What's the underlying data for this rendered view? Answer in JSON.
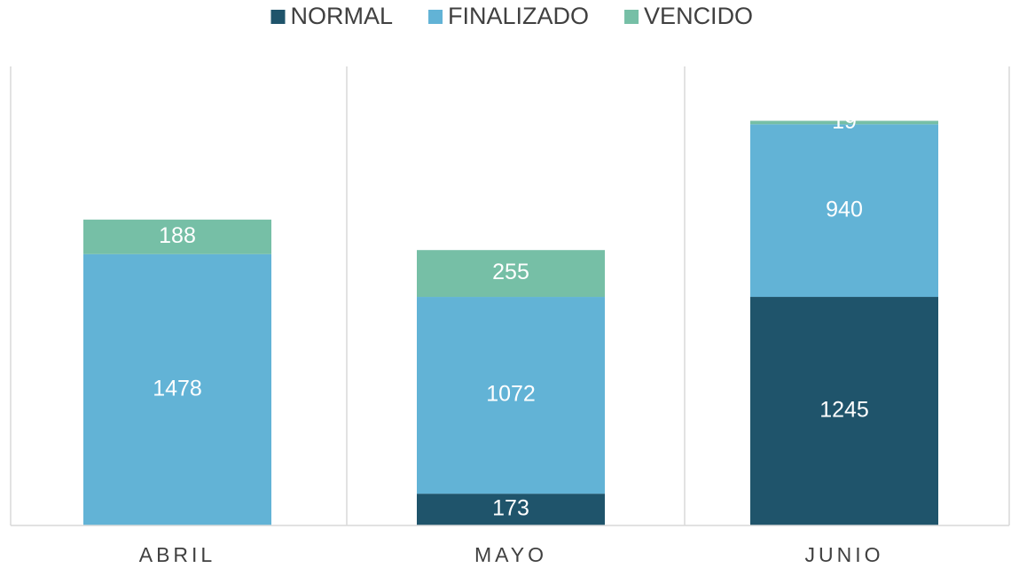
{
  "chart_data": {
    "type": "stacked_bar",
    "categories": [
      "ABRIL",
      "MAYO",
      "JUNIO"
    ],
    "series": [
      {
        "name": "NORMAL",
        "color": "#1f546b",
        "values": [
          0,
          173,
          1245
        ]
      },
      {
        "name": "FINALIZADO",
        "color": "#62b3d6",
        "values": [
          1478,
          1072,
          940
        ]
      },
      {
        "name": "VENCIDO",
        "color": "#76bfa6",
        "values": [
          188,
          255,
          19
        ]
      }
    ],
    "ylim": [
      0,
      2500
    ]
  }
}
